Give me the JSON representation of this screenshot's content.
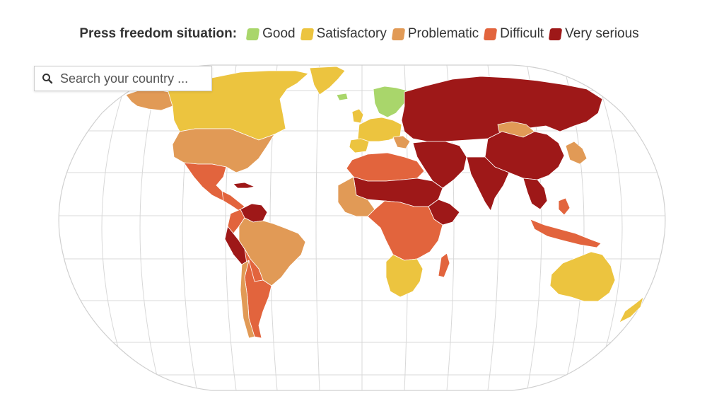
{
  "legend": {
    "title": "Press freedom situation:",
    "items": [
      {
        "key": "good",
        "label": "Good",
        "color": "#a9d66b"
      },
      {
        "key": "satisfactory",
        "label": "Satisfactory",
        "color": "#ecc43f"
      },
      {
        "key": "problematic",
        "label": "Problematic",
        "color": "#e19a56"
      },
      {
        "key": "difficult",
        "label": "Difficult",
        "color": "#e2643d"
      },
      {
        "key": "very_serious",
        "label": "Very serious",
        "color": "#9e1818"
      }
    ]
  },
  "search": {
    "placeholder": "Search your country ...",
    "icon": "search-icon"
  },
  "map": {
    "projection": "robinson-like world projection with graticule",
    "regions": [
      {
        "name": "North America (Canada)",
        "category": "satisfactory"
      },
      {
        "name": "Alaska",
        "category": "problematic"
      },
      {
        "name": "United States",
        "category": "problematic"
      },
      {
        "name": "Mexico & Central America",
        "category": "difficult"
      },
      {
        "name": "Cuba",
        "category": "very_serious"
      },
      {
        "name": "Venezuela",
        "category": "very_serious"
      },
      {
        "name": "Peru",
        "category": "very_serious"
      },
      {
        "name": "Brazil",
        "category": "problematic"
      },
      {
        "name": "Argentina & Chile",
        "category": "difficult"
      },
      {
        "name": "Greenland",
        "category": "satisfactory"
      },
      {
        "name": "Nordic countries",
        "category": "good"
      },
      {
        "name": "Western Europe",
        "category": "satisfactory"
      },
      {
        "name": "Russia & Central Asia",
        "category": "very_serious"
      },
      {
        "name": "China",
        "category": "very_serious"
      },
      {
        "name": "Mongolia",
        "category": "problematic"
      },
      {
        "name": "Japan & Korea",
        "category": "problematic"
      },
      {
        "name": "North Africa",
        "category": "difficult"
      },
      {
        "name": "Sahel & Horn",
        "category": "very_serious"
      },
      {
        "name": "West Africa",
        "category": "problematic"
      },
      {
        "name": "Central & East Africa",
        "category": "difficult"
      },
      {
        "name": "Southern Africa",
        "category": "satisfactory"
      },
      {
        "name": "Madagascar",
        "category": "difficult"
      },
      {
        "name": "Southeast Asia",
        "category": "difficult"
      },
      {
        "name": "Australia",
        "category": "satisfactory"
      },
      {
        "name": "New Zealand",
        "category": "satisfactory"
      }
    ]
  }
}
